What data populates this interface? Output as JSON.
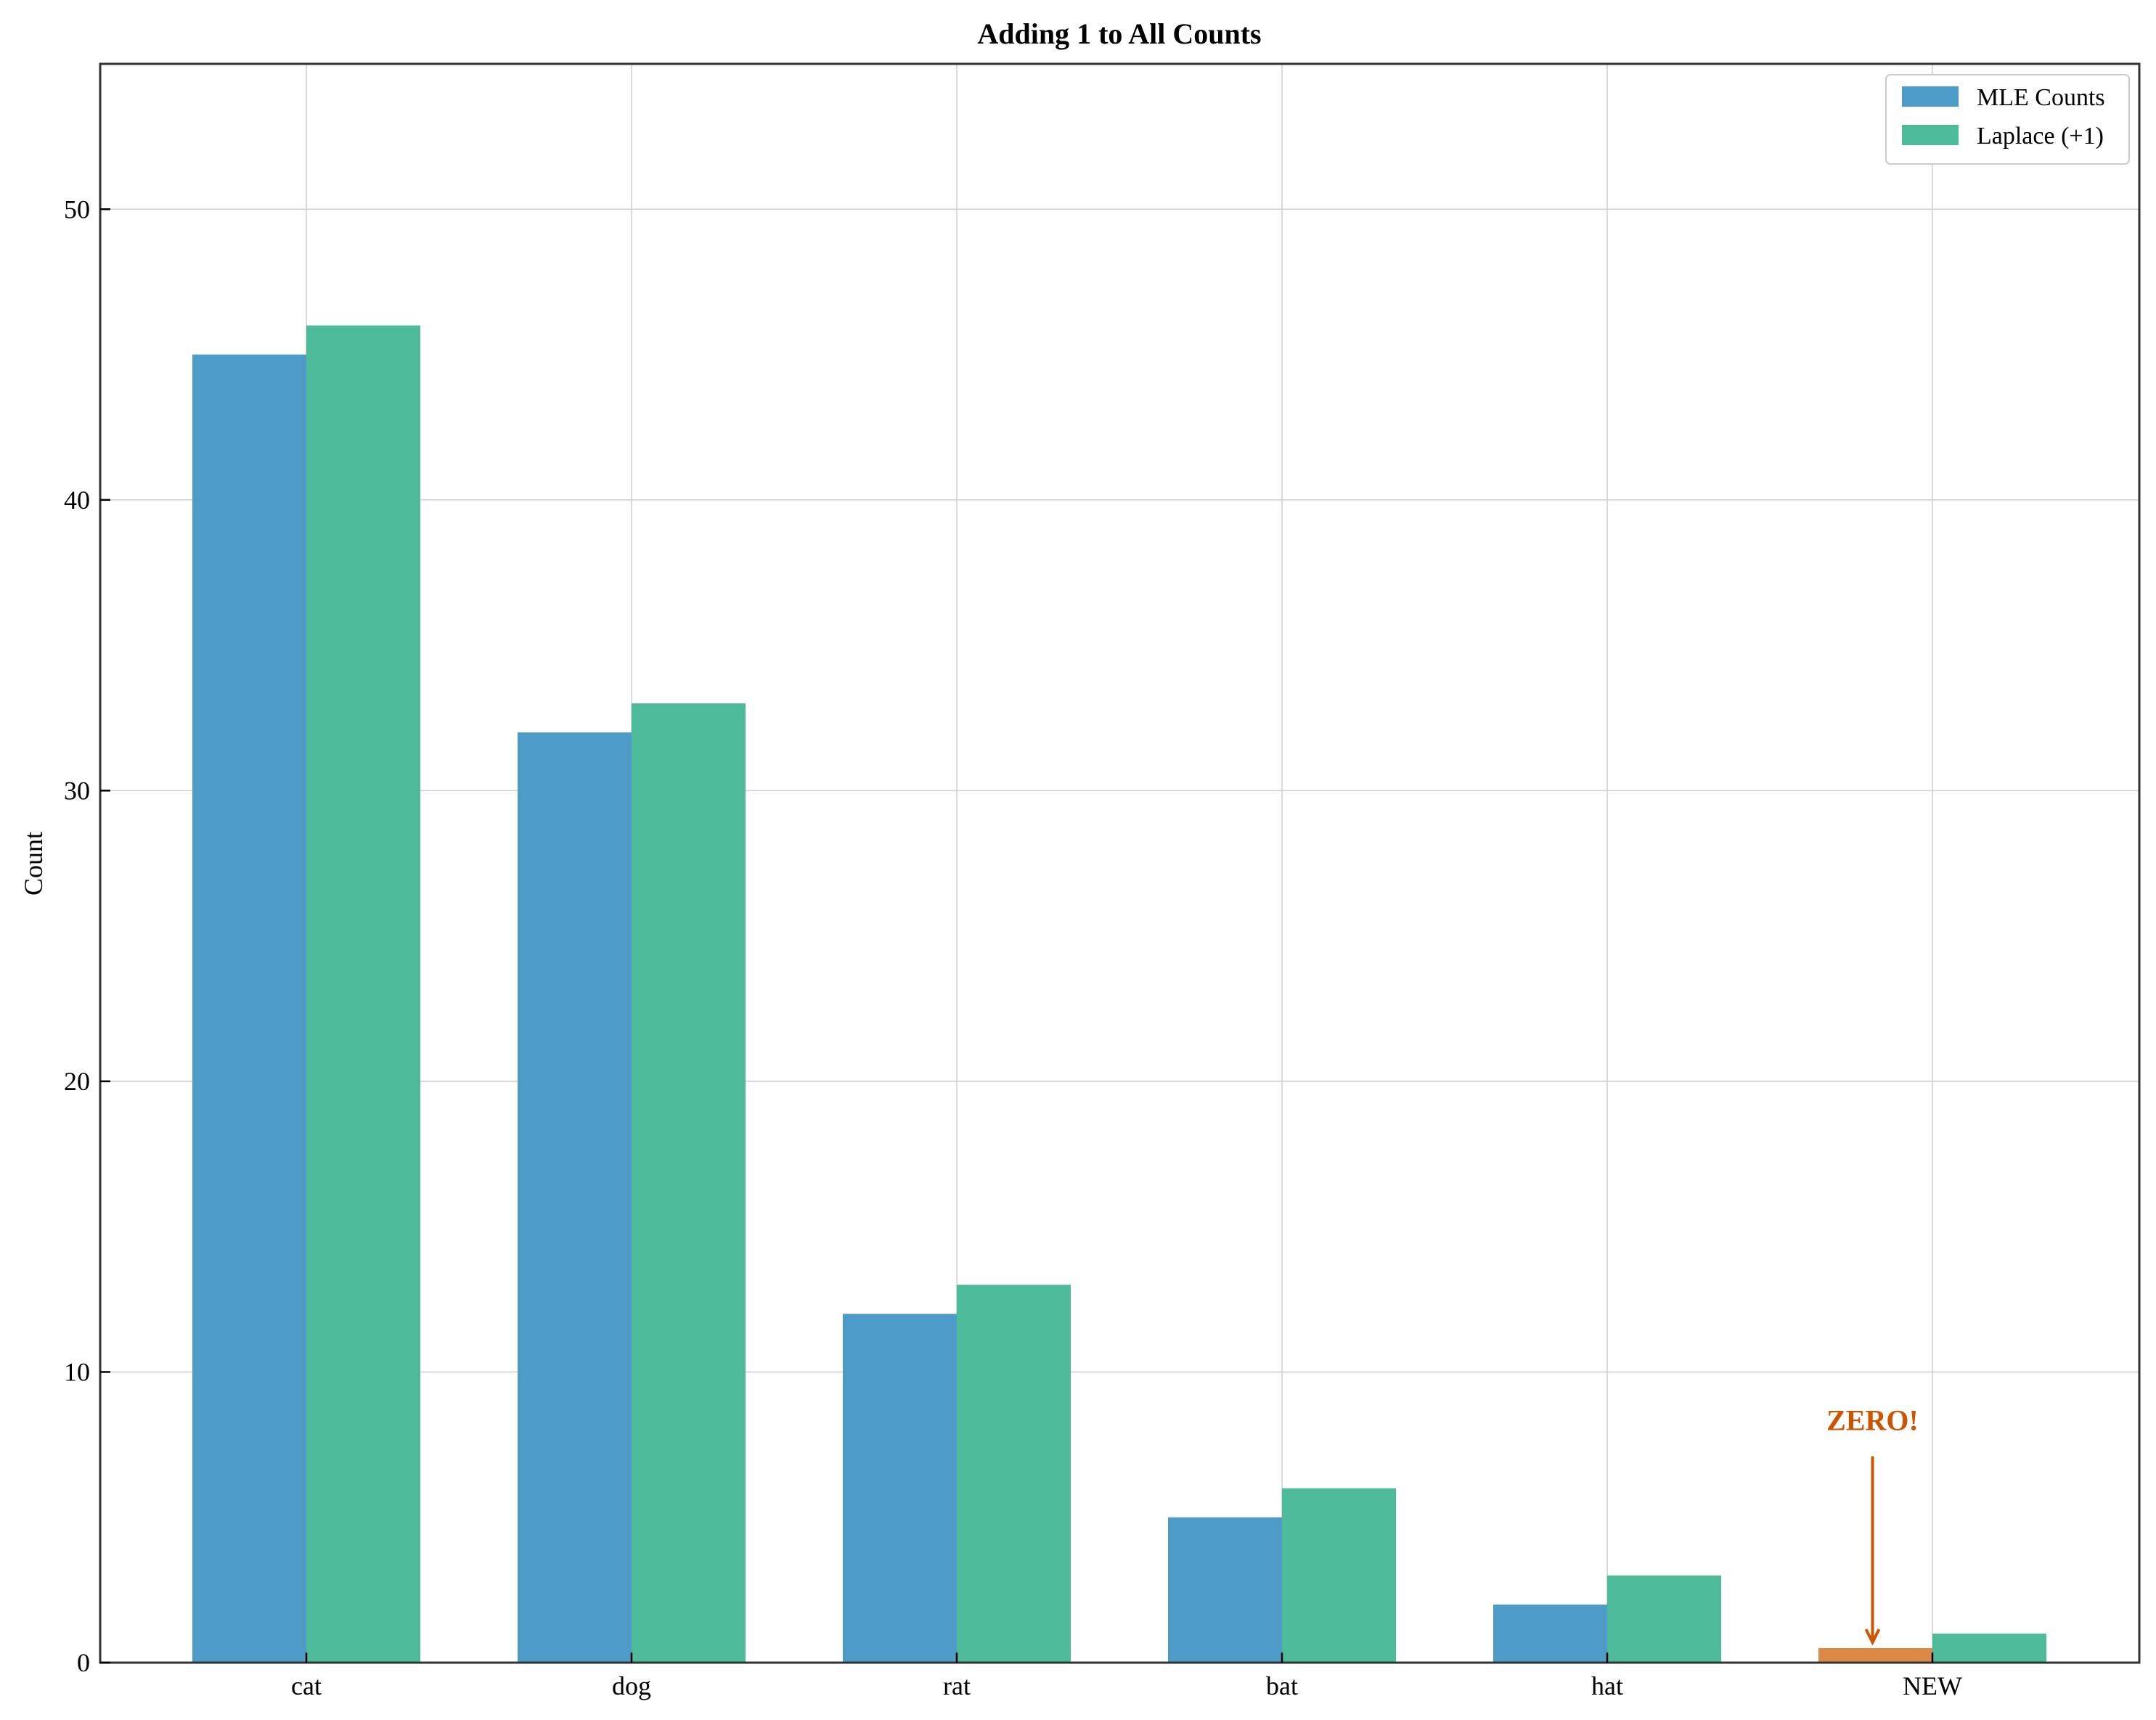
{
  "chart_data": {
    "type": "bar",
    "title": "Adding 1 to All Counts",
    "xlabel": "",
    "ylabel": "Count",
    "categories": [
      "cat",
      "dog",
      "rat",
      "bat",
      "hat",
      "NEW"
    ],
    "series": [
      {
        "name": "MLE Counts",
        "values": [
          45,
          32,
          12,
          5,
          2,
          0
        ],
        "color": "#4c9bc9"
      },
      {
        "name": "Laplace (+1)",
        "values": [
          46,
          33,
          13,
          6,
          3,
          1
        ],
        "color": "#4dba99"
      }
    ],
    "highlight": {
      "category": "NEW",
      "series": "MLE Counts",
      "shown_value": 0.5,
      "color": "#dd8844"
    },
    "annotation": {
      "text": "ZERO!",
      "color": "#cc5500",
      "points_to_value": 0.5,
      "text_value": 8
    },
    "ylim": [
      0,
      55
    ],
    "yticks": [
      0,
      10,
      20,
      30,
      40,
      50
    ],
    "grid": true,
    "legend_position": "top-right"
  }
}
